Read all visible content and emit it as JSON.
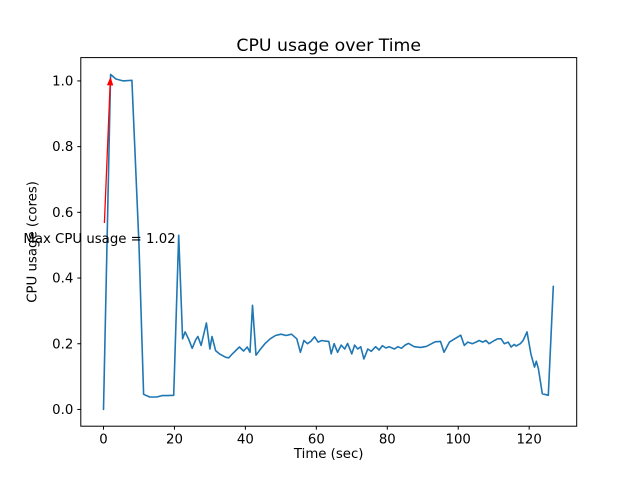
{
  "chart_data": {
    "type": "line",
    "title": "CPU usage over Time",
    "xlabel": "Time (sec)",
    "ylabel": "CPU usage (cores)",
    "xlim": [
      -6.4,
      133.4
    ],
    "ylim": [
      -0.051,
      1.071
    ],
    "xticks": [
      0,
      20,
      40,
      60,
      80,
      100,
      120
    ],
    "yticks": [
      0.0,
      0.2,
      0.4,
      0.6,
      0.8,
      1.0
    ],
    "grid": false,
    "legend": null,
    "line_color": "#1f77b4",
    "annotation": {
      "text": "Max CPU usage = 1.02",
      "color": "#ff0000",
      "xy": [
        2,
        1.02
      ],
      "xytext": [
        0,
        0.5
      ]
    },
    "series": [
      {
        "name": "CPU usage",
        "x": [
          0,
          2,
          3.5,
          5.5,
          8,
          10,
          11.3,
          13,
          15,
          16.5,
          18,
          19.8,
          21.2,
          22.3,
          23,
          24,
          25,
          26,
          26.6,
          27.5,
          29,
          30,
          30.6,
          31.6,
          32.7,
          34.4,
          35.3,
          36.3,
          38.3,
          39.5,
          40.5,
          41.3,
          42,
          43,
          44,
          45.5,
          47,
          48.5,
          50,
          51.5,
          53,
          54.5,
          55.5,
          56.5,
          57.5,
          58.5,
          59.5,
          60.5,
          61.5,
          62.5,
          63.5,
          64.2,
          65,
          66,
          67,
          68,
          68.8,
          70,
          70.8,
          71.7,
          72.5,
          73.4,
          74.5,
          75.5,
          76.7,
          77.7,
          78.6,
          79.6,
          80.5,
          82,
          83,
          84,
          85,
          86,
          87.6,
          89.4,
          91,
          93.5,
          95,
          96,
          97.5,
          99,
          100.7,
          101.7,
          102.7,
          104,
          105,
          105.9,
          106.9,
          107.8,
          108.7,
          110.2,
          111.1,
          112.1,
          113,
          114.1,
          114.9,
          115.8,
          116.3,
          117.5,
          118.3,
          119.4,
          120.5,
          121.5,
          122,
          122.6,
          123.7,
          125.4,
          126.8
        ],
        "y": [
          0.0,
          1.02,
          1.006,
          1.0,
          1.002,
          0.5,
          0.046,
          0.038,
          0.038,
          0.042,
          0.042,
          0.043,
          0.53,
          0.215,
          0.236,
          0.214,
          0.186,
          0.212,
          0.222,
          0.195,
          0.263,
          0.184,
          0.222,
          0.179,
          0.169,
          0.159,
          0.157,
          0.169,
          0.19,
          0.178,
          0.19,
          0.174,
          0.317,
          0.165,
          0.18,
          0.2,
          0.215,
          0.225,
          0.229,
          0.225,
          0.229,
          0.215,
          0.174,
          0.21,
          0.2,
          0.208,
          0.221,
          0.205,
          0.21,
          0.208,
          0.207,
          0.169,
          0.2,
          0.174,
          0.196,
          0.184,
          0.201,
          0.169,
          0.196,
          0.184,
          0.191,
          0.154,
          0.184,
          0.177,
          0.191,
          0.181,
          0.194,
          0.187,
          0.191,
          0.184,
          0.191,
          0.186,
          0.196,
          0.201,
          0.191,
          0.189,
          0.192,
          0.206,
          0.207,
          0.174,
          0.205,
          0.215,
          0.226,
          0.195,
          0.205,
          0.2,
          0.205,
          0.21,
          0.205,
          0.21,
          0.2,
          0.21,
          0.215,
          0.215,
          0.2,
          0.205,
          0.19,
          0.198,
          0.193,
          0.2,
          0.21,
          0.236,
          0.169,
          0.129,
          0.147,
          0.124,
          0.048,
          0.043,
          0.375
        ]
      }
    ]
  }
}
